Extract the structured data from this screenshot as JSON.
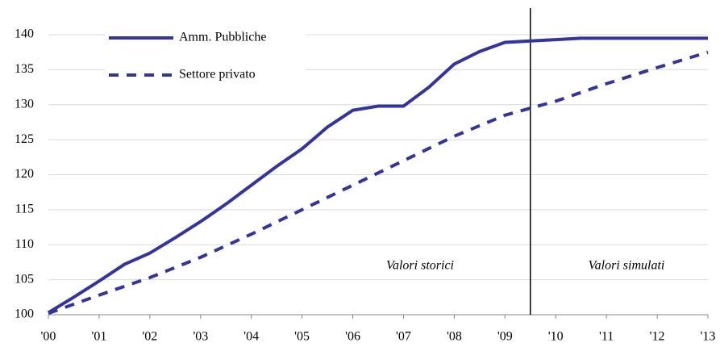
{
  "chart_data": {
    "type": "line",
    "series": [
      {
        "name": "Amm. Pubbliche",
        "color": "#34349c",
        "dash": false,
        "x": [
          0,
          0.5,
          1,
          1.5,
          2,
          2.5,
          3,
          3.5,
          4,
          4.5,
          5,
          5.5,
          6,
          6.5,
          7,
          7.5,
          8,
          8.5,
          9,
          9.5,
          10,
          10.5,
          11,
          12,
          13
        ],
        "values": [
          100.3,
          102.5,
          104.8,
          107.2,
          108.8,
          111,
          113.3,
          115.8,
          118.5,
          121.2,
          123.7,
          126.8,
          129.2,
          129.8,
          129.8,
          132.5,
          135.8,
          137.6,
          138.9,
          139.1,
          139.3,
          139.5,
          139.5,
          139.5,
          139.5
        ]
      },
      {
        "name": "Settore privato",
        "color": "#34349c",
        "dash": true,
        "x": [
          0,
          1,
          2,
          3,
          4,
          5,
          6,
          7,
          8,
          9,
          10,
          11,
          12,
          13
        ],
        "values": [
          100.2,
          102.8,
          105.3,
          108.2,
          111.5,
          115,
          118.5,
          122,
          125.5,
          128.5,
          130.5,
          133,
          135.3,
          137.5
        ]
      }
    ],
    "xlim": [
      0,
      13
    ],
    "xticks": [
      {
        "value": 0,
        "label": "'00"
      },
      {
        "value": 1,
        "label": "'01"
      },
      {
        "value": 2,
        "label": "'02"
      },
      {
        "value": 3,
        "label": "'03"
      },
      {
        "value": 4,
        "label": "'04"
      },
      {
        "value": 5,
        "label": "'05"
      },
      {
        "value": 6,
        "label": "'06"
      },
      {
        "value": 7,
        "label": "'07"
      },
      {
        "value": 8,
        "label": "'08"
      },
      {
        "value": 9,
        "label": "'09"
      },
      {
        "value": 10,
        "label": "'10"
      },
      {
        "value": 11,
        "label": "'11"
      },
      {
        "value": 12,
        "label": "'12"
      },
      {
        "value": 13,
        "label": "'13"
      }
    ],
    "ylim": [
      100,
      140
    ],
    "yticks": [
      100,
      105,
      110,
      115,
      120,
      125,
      130,
      135,
      140
    ],
    "grid": true,
    "divider_x": 9.5,
    "annotations": [
      "Valori storici",
      "Valori simulati"
    ]
  }
}
